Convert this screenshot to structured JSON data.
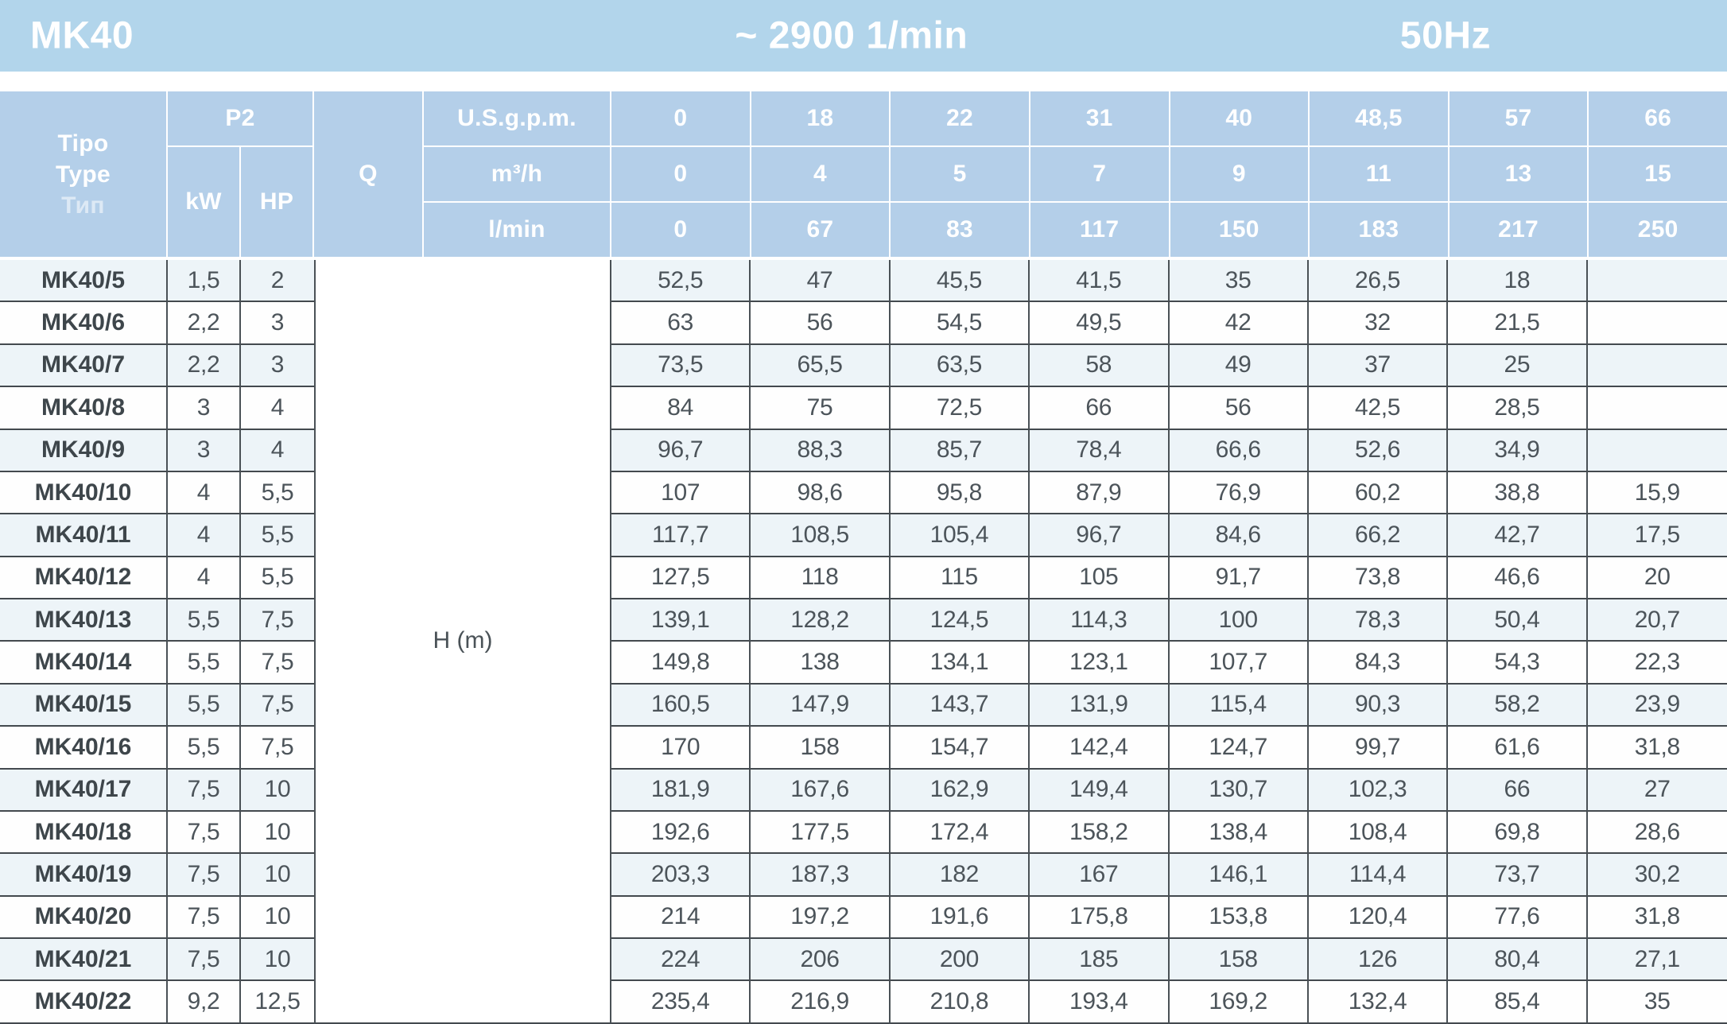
{
  "header_bar": {
    "model": "MK40",
    "speed": "~ 2900 1/min",
    "frequency": "50Hz"
  },
  "table": {
    "type_header": {
      "line1": "Tipo",
      "line2": "Type",
      "line3": "Тип"
    },
    "p2_label": "P2",
    "kw_label": "kW",
    "hp_label": "HP",
    "q_label": "Q",
    "h_label": "H (m)",
    "flow_rows": [
      {
        "unit": "U.S.g.p.m.",
        "values": [
          "0",
          "18",
          "22",
          "31",
          "40",
          "48,5",
          "57",
          "66"
        ]
      },
      {
        "unit": "m³/h",
        "values": [
          "0",
          "4",
          "5",
          "7",
          "9",
          "11",
          "13",
          "15"
        ]
      },
      {
        "unit": "l/min",
        "values": [
          "0",
          "67",
          "83",
          "117",
          "150",
          "183",
          "217",
          "250"
        ]
      }
    ],
    "rows": [
      {
        "type": "MK40/5",
        "kw": "1,5",
        "hp": "2",
        "h": [
          "52,5",
          "47",
          "45,5",
          "41,5",
          "35",
          "26,5",
          "18",
          ""
        ]
      },
      {
        "type": "MK40/6",
        "kw": "2,2",
        "hp": "3",
        "h": [
          "63",
          "56",
          "54,5",
          "49,5",
          "42",
          "32",
          "21,5",
          ""
        ]
      },
      {
        "type": "MK40/7",
        "kw": "2,2",
        "hp": "3",
        "h": [
          "73,5",
          "65,5",
          "63,5",
          "58",
          "49",
          "37",
          "25",
          ""
        ]
      },
      {
        "type": "MK40/8",
        "kw": "3",
        "hp": "4",
        "h": [
          "84",
          "75",
          "72,5",
          "66",
          "56",
          "42,5",
          "28,5",
          ""
        ]
      },
      {
        "type": "MK40/9",
        "kw": "3",
        "hp": "4",
        "h": [
          "96,7",
          "88,3",
          "85,7",
          "78,4",
          "66,6",
          "52,6",
          "34,9",
          ""
        ]
      },
      {
        "type": "MK40/10",
        "kw": "4",
        "hp": "5,5",
        "h": [
          "107",
          "98,6",
          "95,8",
          "87,9",
          "76,9",
          "60,2",
          "38,8",
          "15,9"
        ]
      },
      {
        "type": "MK40/11",
        "kw": "4",
        "hp": "5,5",
        "h": [
          "117,7",
          "108,5",
          "105,4",
          "96,7",
          "84,6",
          "66,2",
          "42,7",
          "17,5"
        ]
      },
      {
        "type": "MK40/12",
        "kw": "4",
        "hp": "5,5",
        "h": [
          "127,5",
          "118",
          "115",
          "105",
          "91,7",
          "73,8",
          "46,6",
          "20"
        ]
      },
      {
        "type": "MK40/13",
        "kw": "5,5",
        "hp": "7,5",
        "h": [
          "139,1",
          "128,2",
          "124,5",
          "114,3",
          "100",
          "78,3",
          "50,4",
          "20,7"
        ]
      },
      {
        "type": "MK40/14",
        "kw": "5,5",
        "hp": "7,5",
        "h": [
          "149,8",
          "138",
          "134,1",
          "123,1",
          "107,7",
          "84,3",
          "54,3",
          "22,3"
        ]
      },
      {
        "type": "MK40/15",
        "kw": "5,5",
        "hp": "7,5",
        "h": [
          "160,5",
          "147,9",
          "143,7",
          "131,9",
          "115,4",
          "90,3",
          "58,2",
          "23,9"
        ]
      },
      {
        "type": "MK40/16",
        "kw": "5,5",
        "hp": "7,5",
        "h": [
          "170",
          "158",
          "154,7",
          "142,4",
          "124,7",
          "99,7",
          "61,6",
          "31,8"
        ]
      },
      {
        "type": "MK40/17",
        "kw": "7,5",
        "hp": "10",
        "h": [
          "181,9",
          "167,6",
          "162,9",
          "149,4",
          "130,7",
          "102,3",
          "66",
          "27"
        ]
      },
      {
        "type": "MK40/18",
        "kw": "7,5",
        "hp": "10",
        "h": [
          "192,6",
          "177,5",
          "172,4",
          "158,2",
          "138,4",
          "108,4",
          "69,8",
          "28,6"
        ]
      },
      {
        "type": "MK40/19",
        "kw": "7,5",
        "hp": "10",
        "h": [
          "203,3",
          "187,3",
          "182",
          "167",
          "146,1",
          "114,4",
          "73,7",
          "30,2"
        ]
      },
      {
        "type": "MK40/20",
        "kw": "7,5",
        "hp": "10",
        "h": [
          "214",
          "197,2",
          "191,6",
          "175,8",
          "153,8",
          "120,4",
          "77,6",
          "31,8"
        ]
      },
      {
        "type": "MK40/21",
        "kw": "7,5",
        "hp": "10",
        "h": [
          "224",
          "206",
          "200",
          "185",
          "158",
          "126",
          "80,4",
          "27,1"
        ]
      },
      {
        "type": "MK40/22",
        "kw": "9,2",
        "hp": "12,5",
        "h": [
          "235,4",
          "216,9",
          "210,8",
          "193,4",
          "169,2",
          "132,4",
          "85,4",
          "35"
        ]
      }
    ]
  },
  "colors": {
    "topbar_bg": "#B2D5EB",
    "header_cell_bg": "#B4CFE9",
    "row_alt_bg": "#EDF4F8",
    "row_bg": "#FEFEFE",
    "grid_line": "#43494E",
    "header_text": "#FFFFFF",
    "value_text": "#4C545A",
    "label_text": "#3E464B"
  }
}
